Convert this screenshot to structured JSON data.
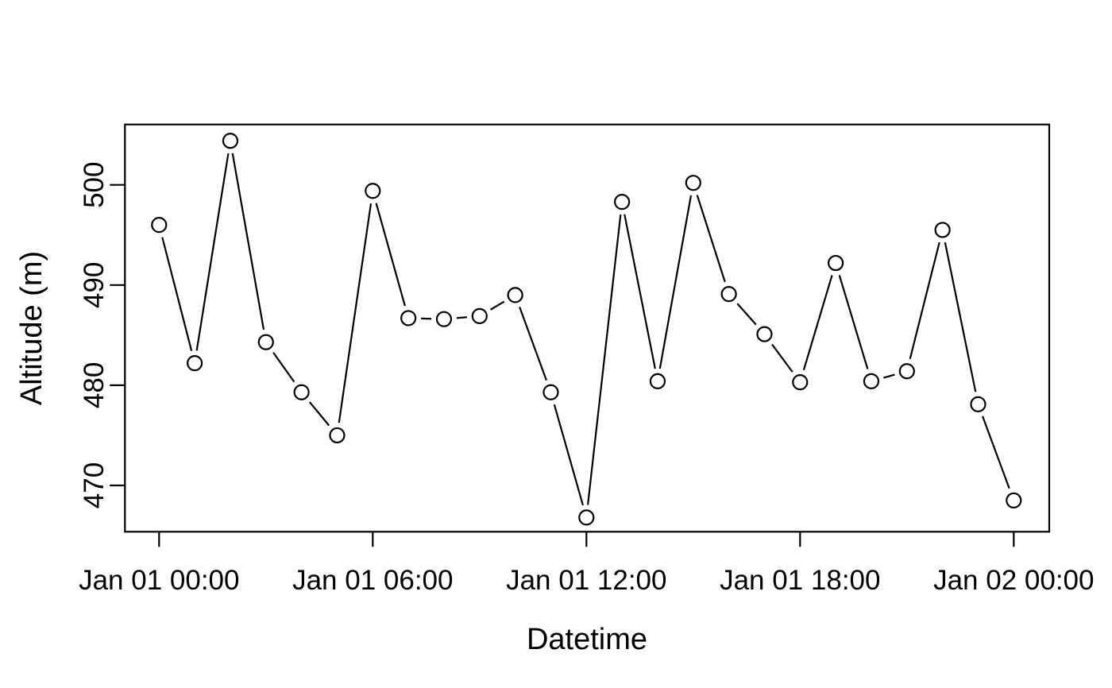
{
  "figure": {
    "background": "#ffffff",
    "foreground": "#000000"
  },
  "chart_data": {
    "type": "line",
    "title": "",
    "xlabel": "Datetime",
    "ylabel": "Altitude (m)",
    "marker": "open-circle",
    "line_color": "#000000",
    "marker_color": "#000000",
    "grid": false,
    "legend": false,
    "x_hours_since_first_tick": [
      0,
      1,
      2,
      3,
      4,
      5,
      6,
      7,
      8,
      9,
      10,
      11,
      12,
      13,
      14,
      15,
      16,
      17,
      18,
      19,
      20,
      21,
      22,
      23,
      24
    ],
    "values": [
      496.0,
      482.2,
      504.4,
      484.3,
      479.3,
      475.0,
      499.4,
      486.7,
      486.6,
      486.9,
      489.0,
      479.3,
      466.8,
      498.3,
      480.4,
      500.2,
      489.1,
      485.1,
      480.3,
      492.2,
      480.4,
      481.4,
      495.5,
      478.1,
      468.5
    ],
    "x_ticks": {
      "positions_hours": [
        0,
        6,
        12,
        18,
        24
      ],
      "labels": [
        "Jan 01 00:00",
        "Jan 01 06:00",
        "Jan 01 12:00",
        "Jan 01 18:00",
        "Jan 02 00:00"
      ]
    },
    "y_ticks": [
      470,
      480,
      490,
      500
    ],
    "xlim_hours": [
      -0.96,
      25.0
    ],
    "ylim": [
      465.4,
      506.0
    ]
  }
}
